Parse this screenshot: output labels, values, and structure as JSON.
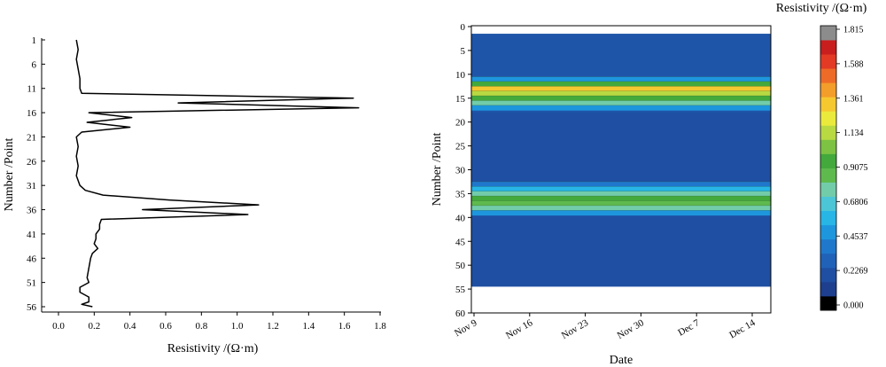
{
  "chart_data": [
    {
      "type": "line",
      "orientation": "vertical-profile",
      "xlabel": "Resistivity /(Ω·m)",
      "ylabel": "Number /Point",
      "xlim": [
        0,
        1.8
      ],
      "ylim": [
        1,
        56
      ],
      "y_inverted": true,
      "xticks": [
        0.0,
        0.2,
        0.4,
        0.6,
        0.8,
        1.0,
        1.2,
        1.4,
        1.6,
        1.8
      ],
      "xtick_labels": [
        "0.0",
        "0.2",
        "0.4",
        "0.6",
        "0.8",
        "1.0",
        "1.2",
        "1.4",
        "1.6",
        "1.8"
      ],
      "yticks": [
        1,
        6,
        11,
        16,
        21,
        26,
        31,
        36,
        41,
        46,
        51,
        56
      ],
      "ytick_labels": [
        "1",
        "6",
        "11",
        "16",
        "21",
        "26",
        "31",
        "36",
        "41",
        "46",
        "51",
        "56"
      ],
      "grid": false,
      "series": [
        {
          "color": "#000000",
          "points": [
            [
              0.1,
              1
            ],
            [
              0.11,
              3
            ],
            [
              0.1,
              5
            ],
            [
              0.11,
              7
            ],
            [
              0.12,
              9
            ],
            [
              0.12,
              11
            ],
            [
              0.13,
              12
            ],
            [
              1.65,
              13
            ],
            [
              0.67,
              14
            ],
            [
              1.68,
              15
            ],
            [
              0.17,
              16
            ],
            [
              0.41,
              17
            ],
            [
              0.16,
              18
            ],
            [
              0.4,
              19
            ],
            [
              0.13,
              20
            ],
            [
              0.1,
              21
            ],
            [
              0.11,
              23
            ],
            [
              0.1,
              25
            ],
            [
              0.11,
              27
            ],
            [
              0.1,
              29
            ],
            [
              0.12,
              31
            ],
            [
              0.15,
              32
            ],
            [
              0.25,
              33
            ],
            [
              0.62,
              34
            ],
            [
              1.12,
              35
            ],
            [
              0.47,
              36
            ],
            [
              1.06,
              37
            ],
            [
              0.24,
              38
            ],
            [
              0.23,
              39
            ],
            [
              0.23,
              40
            ],
            [
              0.21,
              41
            ],
            [
              0.21,
              42
            ],
            [
              0.2,
              43
            ],
            [
              0.22,
              44
            ],
            [
              0.19,
              45
            ],
            [
              0.18,
              46
            ],
            [
              0.17,
              48
            ],
            [
              0.16,
              50
            ],
            [
              0.17,
              51
            ],
            [
              0.12,
              52
            ],
            [
              0.12,
              53
            ],
            [
              0.17,
              54
            ],
            [
              0.17,
              55
            ],
            [
              0.13,
              55.5
            ],
            [
              0.19,
              56
            ]
          ]
        }
      ]
    },
    {
      "type": "heatmap",
      "subtype": "filled-contour",
      "xlabel": "Date",
      "ylabel": "Number /Point",
      "xticks": [
        "Nov 9",
        "Nov 16",
        "Nov 23",
        "Nov 30",
        "Dec 7",
        "Dec 14"
      ],
      "yticks": [
        0,
        5,
        10,
        15,
        20,
        25,
        30,
        35,
        40,
        45,
        50,
        55,
        60
      ],
      "ylim": [
        60,
        0
      ],
      "data_extent": {
        "x": [
          "Nov 9",
          "Dec 15"
        ],
        "y": [
          1.5,
          54.5
        ]
      },
      "colorbar": {
        "title": "Resistivity /(Ω·m)",
        "ticks": [
          "1.815",
          "1.588",
          "1.361",
          "1.134",
          "0.9075",
          "0.6806",
          "0.4537",
          "0.2269",
          "0.000"
        ],
        "min": 0.0,
        "max": 1.815,
        "levels": [
          "#000000",
          "#1e3f8e",
          "#1f4fa2",
          "#2062b8",
          "#1f78cc",
          "#1e96dd",
          "#27b6e6",
          "#4cc6d6",
          "#72ccaa",
          "#5fba4e",
          "#43a93c",
          "#7dc243",
          "#b8d942",
          "#eaea3c",
          "#f6c830",
          "#f39d2a",
          "#ee6b27",
          "#e23a24",
          "#c81e1e",
          "#8c8c8c"
        ]
      },
      "bands": [
        {
          "rows": [
            10.5,
            11.5
          ],
          "value": 0.45
        },
        {
          "rows": [
            11.5,
            12.5
          ],
          "value": 1.0
        },
        {
          "rows": [
            12.5,
            13.5
          ],
          "value": 1.4
        },
        {
          "rows": [
            13.5,
            14.5
          ],
          "value": 1.15
        },
        {
          "rows": [
            14.5,
            15.5
          ],
          "value": 0.95
        },
        {
          "rows": [
            15.5,
            16.5
          ],
          "value": 0.7
        },
        {
          "rows": [
            16.5,
            17.5
          ],
          "value": 0.45
        },
        {
          "rows": [
            32.5,
            33.5
          ],
          "value": 0.3
        },
        {
          "rows": [
            33.5,
            34.5
          ],
          "value": 0.5
        },
        {
          "rows": [
            34.5,
            35.5
          ],
          "value": 0.8
        },
        {
          "rows": [
            35.5,
            36.5
          ],
          "value": 1.0
        },
        {
          "rows": [
            36.5,
            37.5
          ],
          "value": 0.9
        },
        {
          "rows": [
            37.5,
            38.5
          ],
          "value": 0.7
        },
        {
          "rows": [
            38.5,
            39.5
          ],
          "value": 0.4
        }
      ],
      "background_value": 0.13
    }
  ]
}
